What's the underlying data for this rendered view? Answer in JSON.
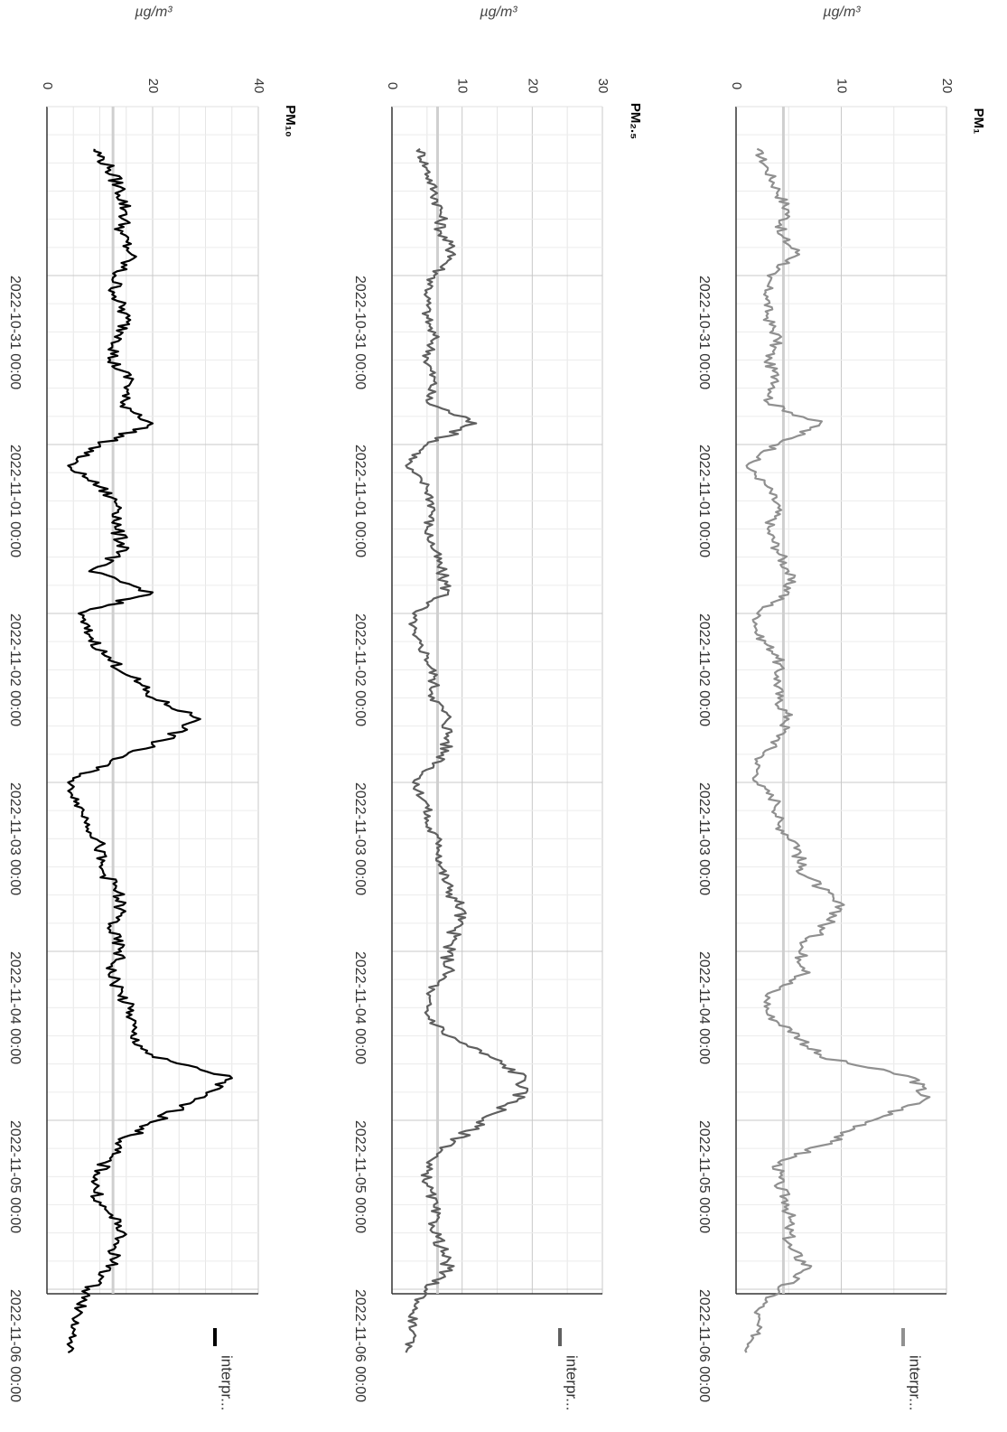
{
  "chart_data": [
    {
      "type": "line",
      "title": "PM₁",
      "ylabel": "µg/m³",
      "ylim": [
        0,
        20
      ],
      "yticks": [
        "0",
        "10",
        "20"
      ],
      "grid": true,
      "legend": "bottom",
      "color": "#909090",
      "ref_line": 4.5,
      "series": [
        {
          "name": "interpr...",
          "x": [
            "2022-10-30 06:00",
            "2022-10-30 09:00",
            "2022-10-30 12:00",
            "2022-10-30 15:00",
            "2022-10-30 18:00",
            "2022-10-30 21:00",
            "2022-10-31 00:00",
            "2022-10-31 03:00",
            "2022-10-31 06:00",
            "2022-10-31 09:00",
            "2022-10-31 12:00",
            "2022-10-31 15:00",
            "2022-10-31 18:00",
            "2022-10-31 21:00",
            "2022-11-01 00:00",
            "2022-11-01 03:00",
            "2022-11-01 06:00",
            "2022-11-01 09:00",
            "2022-11-01 12:00",
            "2022-11-01 15:00",
            "2022-11-01 18:00",
            "2022-11-01 21:00",
            "2022-11-02 00:00",
            "2022-11-02 03:00",
            "2022-11-02 06:00",
            "2022-11-02 09:00",
            "2022-11-02 12:00",
            "2022-11-02 15:00",
            "2022-11-02 18:00",
            "2022-11-02 21:00",
            "2022-11-03 00:00",
            "2022-11-03 03:00",
            "2022-11-03 06:00",
            "2022-11-03 09:00",
            "2022-11-03 12:00",
            "2022-11-03 15:00",
            "2022-11-03 18:00",
            "2022-11-03 21:00",
            "2022-11-04 00:00",
            "2022-11-04 03:00",
            "2022-11-04 06:00",
            "2022-11-04 09:00",
            "2022-11-04 12:00",
            "2022-11-04 15:00",
            "2022-11-04 18:00",
            "2022-11-04 21:00",
            "2022-11-05 00:00",
            "2022-11-05 03:00",
            "2022-11-05 06:00",
            "2022-11-05 09:00",
            "2022-11-05 12:00",
            "2022-11-05 15:00",
            "2022-11-05 18:00",
            "2022-11-05 21:00",
            "2022-11-06 00:00",
            "2022-11-06 03:00",
            "2022-11-06 06:00",
            "2022-11-06 09:00"
          ],
          "values": [
            2,
            3,
            4,
            5,
            4,
            6,
            3,
            3,
            3,
            4,
            3,
            4,
            3,
            8,
            4,
            1,
            3,
            4,
            3,
            4,
            5,
            5,
            2,
            2,
            4,
            4,
            4,
            5,
            4,
            2,
            2,
            4,
            4,
            6,
            6,
            8,
            10,
            8,
            6,
            7,
            3,
            3,
            6,
            8,
            17,
            18,
            13,
            9,
            4,
            4,
            5,
            5,
            5,
            7,
            4,
            2,
            2,
            1
          ]
        }
      ]
    },
    {
      "type": "line",
      "title": "PM₂.₅",
      "ylabel": "µg/m³",
      "ylim": [
        0,
        30
      ],
      "yticks": [
        "0",
        "10",
        "20",
        "30"
      ],
      "grid": true,
      "legend": "bottom",
      "color": "#606060",
      "ref_line": 6.5,
      "series": [
        {
          "name": "interpr...",
          "x": [
            "2022-10-30 06:00",
            "2022-10-30 09:00",
            "2022-10-30 12:00",
            "2022-10-30 15:00",
            "2022-10-30 18:00",
            "2022-10-30 21:00",
            "2022-10-31 00:00",
            "2022-10-31 03:00",
            "2022-10-31 06:00",
            "2022-10-31 09:00",
            "2022-10-31 12:00",
            "2022-10-31 15:00",
            "2022-10-31 18:00",
            "2022-10-31 21:00",
            "2022-11-01 00:00",
            "2022-11-01 03:00",
            "2022-11-01 06:00",
            "2022-11-01 09:00",
            "2022-11-01 12:00",
            "2022-11-01 15:00",
            "2022-11-01 18:00",
            "2022-11-01 21:00",
            "2022-11-02 00:00",
            "2022-11-02 03:00",
            "2022-11-02 06:00",
            "2022-11-02 09:00",
            "2022-11-02 12:00",
            "2022-11-02 15:00",
            "2022-11-02 18:00",
            "2022-11-02 21:00",
            "2022-11-03 00:00",
            "2022-11-03 03:00",
            "2022-11-03 06:00",
            "2022-11-03 09:00",
            "2022-11-03 12:00",
            "2022-11-03 15:00",
            "2022-11-03 18:00",
            "2022-11-03 21:00",
            "2022-11-04 00:00",
            "2022-11-04 03:00",
            "2022-11-04 06:00",
            "2022-11-04 09:00",
            "2022-11-04 12:00",
            "2022-11-04 15:00",
            "2022-11-04 18:00",
            "2022-11-04 21:00",
            "2022-11-05 00:00",
            "2022-11-05 03:00",
            "2022-11-05 06:00",
            "2022-11-05 09:00",
            "2022-11-05 12:00",
            "2022-11-05 15:00",
            "2022-11-05 18:00",
            "2022-11-05 21:00",
            "2022-11-06 00:00",
            "2022-11-06 03:00",
            "2022-11-06 06:00",
            "2022-11-06 09:00"
          ],
          "values": [
            4,
            5,
            6,
            7,
            7,
            9,
            6,
            5,
            5,
            6,
            5,
            6,
            5,
            12,
            5,
            2,
            5,
            6,
            5,
            6,
            7,
            8,
            3,
            3,
            5,
            6,
            6,
            8,
            8,
            7,
            3,
            5,
            5,
            7,
            7,
            8,
            10,
            9,
            8,
            8,
            5,
            5,
            8,
            14,
            19,
            18,
            13,
            9,
            5,
            5,
            6,
            6,
            7,
            8,
            5,
            3,
            3,
            2
          ]
        }
      ]
    },
    {
      "type": "line",
      "title": "PM₁₀",
      "ylabel": "µg/m³",
      "ylim": [
        0,
        40
      ],
      "yticks": [
        "0",
        "20",
        "40"
      ],
      "grid": true,
      "legend": "bottom",
      "color": "#000000",
      "ref_line": 12.5,
      "series": [
        {
          "name": "interpr...",
          "x": [
            "2022-10-30 06:00",
            "2022-10-30 09:00",
            "2022-10-30 12:00",
            "2022-10-30 15:00",
            "2022-10-30 18:00",
            "2022-10-30 21:00",
            "2022-10-31 00:00",
            "2022-10-31 03:00",
            "2022-10-31 06:00",
            "2022-10-31 09:00",
            "2022-10-31 12:00",
            "2022-10-31 15:00",
            "2022-10-31 18:00",
            "2022-10-31 21:00",
            "2022-11-01 00:00",
            "2022-11-01 03:00",
            "2022-11-01 06:00",
            "2022-11-01 09:00",
            "2022-11-01 12:00",
            "2022-11-01 15:00",
            "2022-11-01 18:00",
            "2022-11-01 21:00",
            "2022-11-02 00:00",
            "2022-11-02 03:00",
            "2022-11-02 06:00",
            "2022-11-02 09:00",
            "2022-11-02 12:00",
            "2022-11-02 15:00",
            "2022-11-02 18:00",
            "2022-11-02 21:00",
            "2022-11-03 00:00",
            "2022-11-03 03:00",
            "2022-11-03 06:00",
            "2022-11-03 09:00",
            "2022-11-03 12:00",
            "2022-11-03 15:00",
            "2022-11-03 18:00",
            "2022-11-03 21:00",
            "2022-11-04 00:00",
            "2022-11-04 03:00",
            "2022-11-04 06:00",
            "2022-11-04 09:00",
            "2022-11-04 12:00",
            "2022-11-04 15:00",
            "2022-11-04 18:00",
            "2022-11-04 21:00",
            "2022-11-05 00:00",
            "2022-11-05 03:00",
            "2022-11-05 06:00",
            "2022-11-05 09:00",
            "2022-11-05 12:00",
            "2022-11-05 15:00",
            "2022-11-05 18:00",
            "2022-11-05 21:00",
            "2022-11-06 00:00",
            "2022-11-06 03:00",
            "2022-11-06 06:00",
            "2022-11-06 09:00"
          ],
          "values": [
            9,
            12,
            14,
            15,
            14,
            16,
            13,
            13,
            15,
            14,
            12,
            16,
            14,
            20,
            10,
            4,
            10,
            14,
            13,
            15,
            8,
            20,
            6,
            8,
            11,
            16,
            20,
            29,
            22,
            12,
            4,
            6,
            8,
            10,
            10,
            13,
            14,
            12,
            14,
            12,
            14,
            16,
            16,
            20,
            35,
            28,
            21,
            14,
            11,
            9,
            10,
            14,
            13,
            12,
            8,
            6,
            5,
            4
          ]
        }
      ]
    }
  ]
}
